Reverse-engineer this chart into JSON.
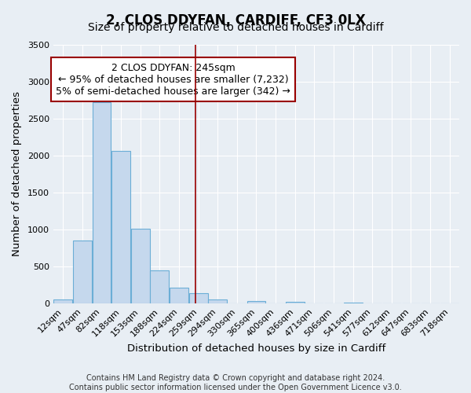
{
  "title": "2, CLOS DDYFAN, CARDIFF, CF3 0LX",
  "subtitle": "Size of property relative to detached houses in Cardiff",
  "xlabel": "Distribution of detached houses by size in Cardiff",
  "ylabel": "Number of detached properties",
  "bar_labels": [
    "12sqm",
    "47sqm",
    "82sqm",
    "118sqm",
    "153sqm",
    "188sqm",
    "224sqm",
    "259sqm",
    "294sqm",
    "330sqm",
    "365sqm",
    "400sqm",
    "436sqm",
    "471sqm",
    "506sqm",
    "541sqm",
    "577sqm",
    "612sqm",
    "647sqm",
    "683sqm",
    "718sqm"
  ],
  "bar_values": [
    55,
    850,
    2720,
    2060,
    1010,
    450,
    210,
    140,
    55,
    0,
    30,
    0,
    20,
    0,
    0,
    10,
    0,
    0,
    0,
    0,
    5
  ],
  "bar_color": "#c5d8ed",
  "bar_edge_color": "#6baed6",
  "bar_width": 0.97,
  "ylim": [
    0,
    3500
  ],
  "yticks": [
    0,
    500,
    1000,
    1500,
    2000,
    2500,
    3000,
    3500
  ],
  "annotation_box_text": "2 CLOS DDYFAN: 245sqm\n← 95% of detached houses are smaller (7,232)\n5% of semi-detached houses are larger (342) →",
  "vline_x": 6.85,
  "vline_color": "#990000",
  "annotation_box_edge_color": "#990000",
  "footer_line1": "Contains HM Land Registry data © Crown copyright and database right 2024.",
  "footer_line2": "Contains public sector information licensed under the Open Government Licence v3.0.",
  "background_color": "#e8eef4",
  "grid_color": "#ffffff",
  "title_fontsize": 12,
  "subtitle_fontsize": 10,
  "axis_label_fontsize": 9.5,
  "tick_fontsize": 8,
  "annotation_fontsize": 9,
  "footer_fontsize": 7
}
